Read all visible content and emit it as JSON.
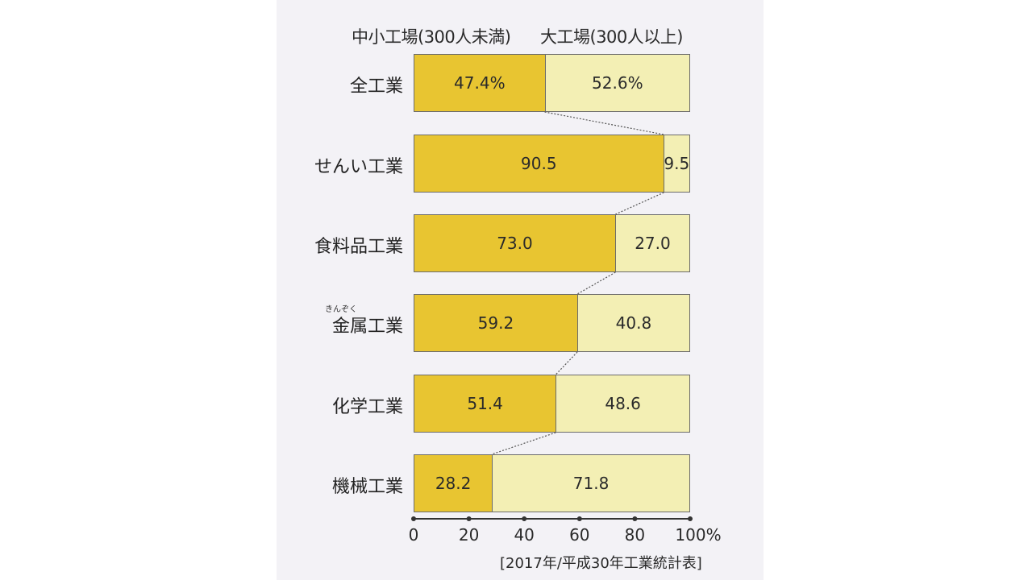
{
  "legend": {
    "small": "中小工場(300人未満)",
    "large": "大工場(300人以上)"
  },
  "rows": [
    {
      "label": "全工業",
      "ruby": "",
      "small": "47.4%",
      "large": "52.6%"
    },
    {
      "label": "せんい工業",
      "ruby": "",
      "small": "90.5",
      "large": "9.5"
    },
    {
      "label": "食料品工業",
      "ruby": "",
      "small": "73.0",
      "large": "27.0"
    },
    {
      "label": "金属工業",
      "ruby": "きんぞく",
      "small": "59.2",
      "large": "40.8"
    },
    {
      "label": "化学工業",
      "ruby": "",
      "small": "51.4",
      "large": "48.6"
    },
    {
      "label": "機械工業",
      "ruby": "",
      "small": "28.2",
      "large": "71.8"
    }
  ],
  "axis": {
    "ticks": [
      "0",
      "20",
      "40",
      "60",
      "80",
      "100%"
    ]
  },
  "source": "[2017年/平成30年工業統計表]",
  "colors": {
    "small": "#e8c531",
    "large": "#f3efb4"
  },
  "chart_data": {
    "type": "bar",
    "orientation": "horizontal",
    "stacked": true,
    "title": "",
    "categories": [
      "全工業",
      "せんい工業",
      "食料品工業",
      "金属工業",
      "化学工業",
      "機械工業"
    ],
    "series": [
      {
        "name": "中小工場(300人未満)",
        "values": [
          47.4,
          90.5,
          73.0,
          59.2,
          51.4,
          28.2
        ]
      },
      {
        "name": "大工場(300人以上)",
        "values": [
          52.6,
          9.5,
          27.0,
          40.8,
          48.6,
          71.8
        ]
      }
    ],
    "xlabel": "",
    "ylabel": "",
    "xlim": [
      0,
      100
    ],
    "xticks": [
      0,
      20,
      40,
      60,
      80,
      100
    ],
    "unit": "%",
    "legend_position": "top",
    "grid": false,
    "annotations": [
      "dotted connector lines between adjacent bar boundaries",
      "ruby reading きんぞく above 金属"
    ],
    "source": "2017年/平成30年工業統計表"
  }
}
